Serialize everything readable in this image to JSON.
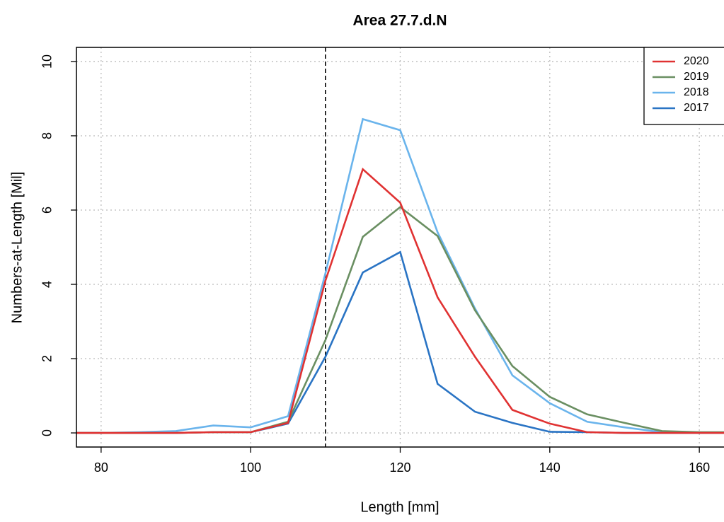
{
  "chart_data": {
    "type": "line",
    "title": "Area 27.7.d.N",
    "xlabel": "Length  [mm]",
    "ylabel": "Numbers-at-Length  [Mil]",
    "x": [
      75,
      80,
      85,
      90,
      95,
      100,
      105,
      110,
      115,
      120,
      125,
      130,
      135,
      140,
      145,
      150,
      155,
      160,
      165
    ],
    "series": [
      {
        "name": "2020",
        "color": "#e03232",
        "values": [
          0,
          0,
          0,
          0,
          0.02,
          0.02,
          0.27,
          4.1,
          7.1,
          6.2,
          3.65,
          2.05,
          0.62,
          0.25,
          0.02,
          0,
          0,
          0,
          0
        ]
      },
      {
        "name": "2019",
        "color": "#6a8f62",
        "values": [
          0,
          0,
          0,
          0,
          0.02,
          0.02,
          0.3,
          2.5,
          5.28,
          6.08,
          5.3,
          3.3,
          1.8,
          0.97,
          0.5,
          0.27,
          0.05,
          0.02,
          0.02
        ]
      },
      {
        "name": "2018",
        "color": "#6ab4ec",
        "values": [
          0,
          0,
          0.02,
          0.05,
          0.2,
          0.15,
          0.45,
          4.3,
          8.45,
          8.15,
          5.4,
          3.35,
          1.55,
          0.8,
          0.3,
          0.15,
          0.02,
          0,
          0
        ]
      },
      {
        "name": "2017",
        "color": "#2a74c4",
        "values": [
          0,
          0,
          0,
          0,
          0.02,
          0.02,
          0.25,
          2.05,
          4.32,
          4.87,
          1.32,
          0.57,
          0.27,
          0.03,
          0.02,
          0,
          0,
          0,
          0
        ]
      }
    ],
    "xlim": [
      76.7,
      163.3
    ],
    "xticks": [
      80,
      100,
      120,
      140,
      160
    ],
    "ylim": [
      -0.38,
      10.38
    ],
    "yticks": [
      0,
      2,
      4,
      6,
      8,
      10
    ],
    "vline": 110,
    "grid": true,
    "legend": "topright"
  }
}
